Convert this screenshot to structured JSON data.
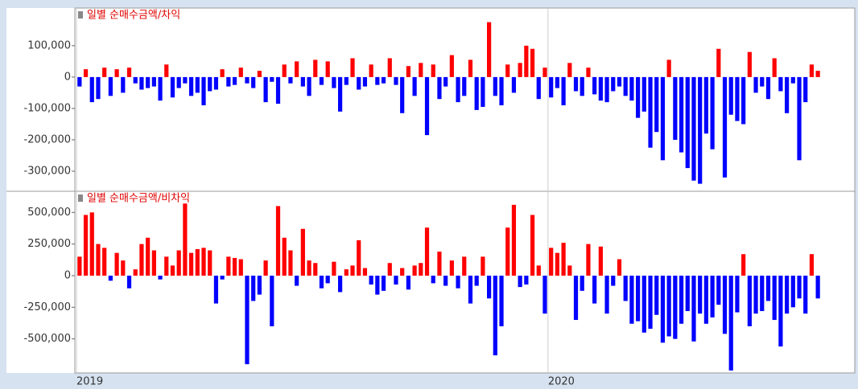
{
  "chart_data": [
    {
      "type": "bar",
      "title": "일별 순매수금액/차익",
      "ylim": [
        -364000,
        220000
      ],
      "yticks": [
        {
          "value": 100000,
          "label": "100,000"
        },
        0,
        {
          "value": -100000,
          "label": "-100,000"
        },
        {
          "value": -200000,
          "label": "-200,000"
        },
        {
          "value": -300000,
          "label": "-300,000"
        }
      ],
      "colors": {
        "positive": "#ff0000",
        "negative": "#0000ff"
      },
      "values": [
        -30000,
        25000,
        -80000,
        -70000,
        30000,
        -60000,
        25000,
        -50000,
        30000,
        -20000,
        -40000,
        -35000,
        -30000,
        -75000,
        40000,
        -65000,
        -35000,
        -20000,
        -60000,
        -50000,
        -90000,
        -45000,
        -40000,
        25000,
        -30000,
        -25000,
        30000,
        -20000,
        -35000,
        20000,
        -80000,
        -15000,
        -85000,
        40000,
        -20000,
        50000,
        -30000,
        -60000,
        55000,
        -25000,
        50000,
        -35000,
        -110000,
        -25000,
        60000,
        -40000,
        -30000,
        40000,
        -25000,
        -20000,
        60000,
        -25000,
        -115000,
        35000,
        -60000,
        45000,
        -185000,
        40000,
        -70000,
        -30000,
        70000,
        -80000,
        -60000,
        55000,
        -105000,
        -95000,
        175000,
        -60000,
        -90000,
        40000,
        -50000,
        45000,
        100000,
        90000,
        -70000,
        30000,
        -65000,
        -35000,
        -90000,
        45000,
        -45000,
        -60000,
        30000,
        -55000,
        -75000,
        -80000,
        -45000,
        -30000,
        -60000,
        -75000,
        -130000,
        -110000,
        -225000,
        -175000,
        -265000,
        55000,
        -200000,
        -240000,
        -290000,
        -330000,
        -340000,
        -180000,
        -230000,
        90000,
        -320000,
        -120000,
        -140000,
        -150000,
        80000,
        -50000,
        -30000,
        -70000,
        60000,
        -45000,
        -115000,
        -20000,
        -265000,
        -80000,
        40000,
        20000
      ]
    },
    {
      "type": "bar",
      "title": "일별 순매수금액/비차익",
      "ylim": [
        -769000,
        667000
      ],
      "yticks": [
        {
          "value": 500000,
          "label": "500,000"
        },
        {
          "value": 250000,
          "label": "250,000"
        },
        0,
        {
          "value": -250000,
          "label": "-250,000"
        },
        {
          "value": -500000,
          "label": "-500,000"
        }
      ],
      "colors": {
        "positive": "#ff0000",
        "negative": "#0000ff"
      },
      "categories": [
        "2019",
        null,
        null,
        null,
        null,
        null,
        null,
        null,
        null,
        null,
        null,
        null,
        null,
        null,
        null,
        null,
        null,
        null,
        null,
        null,
        null,
        null,
        null,
        null,
        null,
        null,
        null,
        null,
        null,
        null,
        null,
        null,
        null,
        null,
        null,
        null,
        null,
        null,
        null,
        null,
        null,
        null,
        null,
        null,
        null,
        null,
        null,
        null,
        null,
        null,
        null,
        null,
        null,
        null,
        null,
        null,
        null,
        null,
        null,
        null,
        null,
        null,
        null,
        null,
        null,
        null,
        null,
        null,
        null,
        null,
        null,
        null,
        null,
        null,
        null,
        null,
        "2020",
        null,
        null,
        null,
        null,
        null,
        null,
        null,
        null,
        null,
        null,
        null,
        null,
        null,
        null,
        null,
        null,
        null,
        null,
        null,
        null,
        null,
        null,
        null,
        null,
        null,
        null,
        null,
        null,
        null,
        null,
        null,
        null,
        null,
        null,
        null,
        null,
        null,
        null,
        null,
        null,
        null,
        null,
        null
      ],
      "values": [
        150000,
        480000,
        500000,
        250000,
        220000,
        -40000,
        180000,
        120000,
        -100000,
        50000,
        250000,
        300000,
        200000,
        -30000,
        150000,
        80000,
        200000,
        570000,
        180000,
        210000,
        220000,
        200000,
        -220000,
        -30000,
        150000,
        140000,
        130000,
        -700000,
        -200000,
        -150000,
        120000,
        -400000,
        550000,
        300000,
        200000,
        -80000,
        370000,
        120000,
        100000,
        -100000,
        -60000,
        110000,
        -130000,
        50000,
        80000,
        280000,
        60000,
        -70000,
        -150000,
        -120000,
        100000,
        -70000,
        60000,
        -110000,
        80000,
        100000,
        380000,
        -60000,
        190000,
        -80000,
        120000,
        -100000,
        150000,
        -220000,
        -80000,
        150000,
        -180000,
        -630000,
        -400000,
        380000,
        560000,
        -90000,
        -70000,
        480000,
        80000,
        -300000,
        220000,
        180000,
        260000,
        80000,
        -350000,
        -120000,
        250000,
        -220000,
        230000,
        -300000,
        -80000,
        130000,
        -200000,
        -380000,
        -360000,
        -450000,
        -420000,
        -310000,
        -530000,
        -480000,
        -500000,
        -380000,
        -280000,
        -520000,
        -300000,
        -380000,
        -330000,
        -230000,
        -460000,
        -750000,
        -290000,
        170000,
        -400000,
        -300000,
        -280000,
        -200000,
        -350000,
        -560000,
        -300000,
        -250000,
        -180000,
        -300000,
        170000,
        -180000
      ]
    }
  ]
}
